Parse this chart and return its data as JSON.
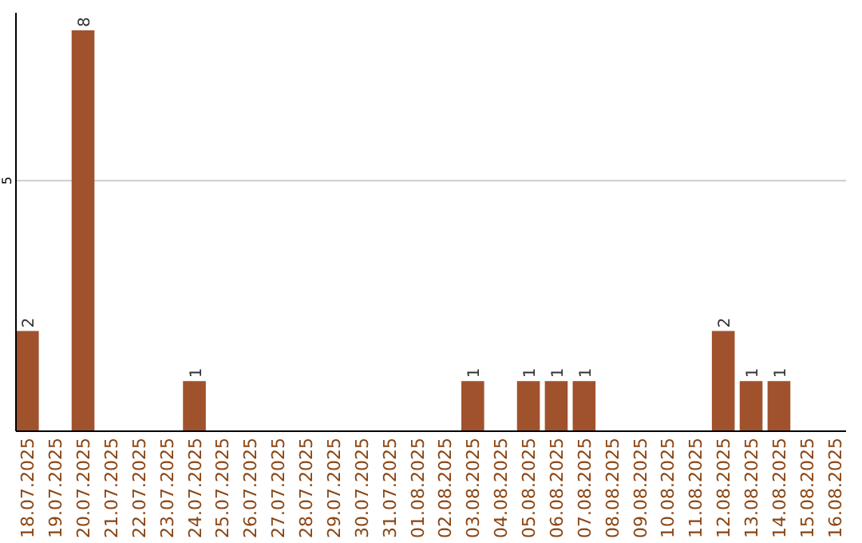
{
  "chart_data": {
    "type": "bar",
    "categories": [
      "18.07.2025",
      "19.07.2025",
      "20.07.2025",
      "21.07.2025",
      "22.07.2025",
      "23.07.2025",
      "24.07.2025",
      "25.07.2025",
      "26.07.2025",
      "27.07.2025",
      "28.07.2025",
      "29.07.2025",
      "30.07.2025",
      "31.07.2025",
      "01.08.2025",
      "02.08.2025",
      "03.08.2025",
      "04.08.2025",
      "05.08.2025",
      "06.08.2025",
      "07.08.2025",
      "08.08.2025",
      "09.08.2025",
      "10.08.2025",
      "11.08.2025",
      "12.08.2025",
      "13.08.2025",
      "14.08.2025",
      "15.08.2025",
      "16.08.2025"
    ],
    "values": [
      2,
      0,
      8,
      0,
      0,
      0,
      1,
      0,
      0,
      0,
      0,
      0,
      0,
      0,
      0,
      0,
      1,
      0,
      1,
      1,
      1,
      0,
      0,
      0,
      0,
      2,
      1,
      1,
      0,
      0
    ],
    "value_labels": [
      "2",
      null,
      "8",
      null,
      null,
      null,
      "1",
      null,
      null,
      null,
      null,
      null,
      null,
      null,
      null,
      null,
      "1",
      null,
      "1",
      "1",
      "1",
      null,
      null,
      null,
      null,
      "2",
      "1",
      "1",
      null,
      null
    ],
    "color": "#a0522d",
    "ylim": [
      0,
      8.35
    ],
    "yticks": [
      5
    ],
    "grid": "y"
  }
}
